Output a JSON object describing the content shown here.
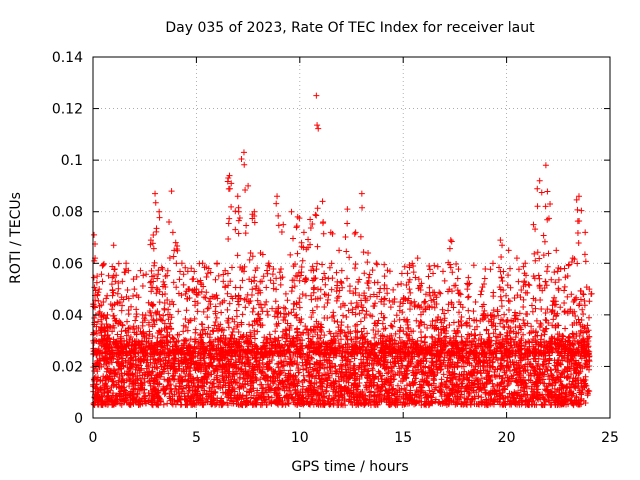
{
  "chart_data": {
    "type": "scatter",
    "title": "Day 035 of 2023, Rate Of TEC Index for receiver laut",
    "xlabel": "GPS time / hours",
    "ylabel": "ROTI / TECUs",
    "xlim": [
      0,
      25
    ],
    "ylim": [
      0,
      0.14
    ],
    "x_ticks": [
      0,
      5,
      10,
      15,
      20,
      25
    ],
    "y_ticks": [
      0,
      0.02,
      0.04,
      0.06,
      0.08,
      0.1,
      0.12,
      0.14
    ],
    "x_tick_labels": [
      "0",
      "5",
      "10",
      "15",
      "20",
      "25"
    ],
    "y_tick_labels": [
      "0",
      "0.02",
      "0.04",
      "0.06",
      "0.08",
      "0.1",
      "0.12",
      "0.14"
    ],
    "grid": true,
    "marker": "plus",
    "marker_color": "#ff0000",
    "series": [
      {
        "points_description": "dense cloud of per-epoch ROTI values from 0 to 24 h, baseline about 0.005-0.03 TECUs",
        "x": [
          0.05,
          0.1,
          0.2,
          0.3,
          0.5,
          0.7,
          1.0,
          1.3,
          1.6,
          2.0,
          2.4,
          2.8,
          3.0,
          3.2,
          3.5,
          3.8,
          4.0,
          4.3,
          4.6,
          5.0,
          5.3,
          5.6,
          6.0,
          6.3,
          6.6,
          7.0,
          7.3,
          7.5,
          7.8,
          8.1,
          8.5,
          8.9,
          9.2,
          9.6,
          9.9,
          10.2,
          10.5,
          10.8,
          11.1,
          11.5,
          11.9,
          12.3,
          12.7,
          13.0,
          13.3,
          13.7,
          14.1,
          14.5,
          14.9,
          15.3,
          15.7,
          16.1,
          16.5,
          16.9,
          17.3,
          17.7,
          18.1,
          18.5,
          18.9,
          19.3,
          19.7,
          20.1,
          20.5,
          20.9,
          21.3,
          21.6,
          21.9,
          22.1,
          22.4,
          22.8,
          23.2,
          23.5,
          23.8,
          24.0
        ],
        "y": [
          0.071,
          0.062,
          0.055,
          0.05,
          0.045,
          0.04,
          0.067,
          0.045,
          0.06,
          0.05,
          0.04,
          0.069,
          0.087,
          0.08,
          0.055,
          0.088,
          0.068,
          0.06,
          0.05,
          0.05,
          0.06,
          0.058,
          0.06,
          0.053,
          0.094,
          0.086,
          0.103,
          0.09,
          0.08,
          0.064,
          0.06,
          0.086,
          0.075,
          0.08,
          0.078,
          0.072,
          0.077,
          0.125,
          0.084,
          0.072,
          0.065,
          0.081,
          0.072,
          0.087,
          0.064,
          0.06,
          0.055,
          0.045,
          0.052,
          0.05,
          0.062,
          0.048,
          0.045,
          0.042,
          0.069,
          0.045,
          0.05,
          0.045,
          0.044,
          0.04,
          0.069,
          0.065,
          0.062,
          0.06,
          0.075,
          0.092,
          0.098,
          0.083,
          0.065,
          0.058,
          0.062,
          0.086,
          0.072,
          0.05
        ],
        "baseline_min": 0.005,
        "baseline_max": 0.03
      }
    ]
  }
}
